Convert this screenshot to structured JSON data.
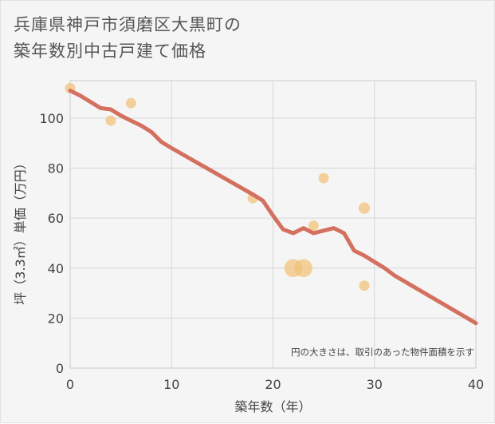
{
  "title_lines": [
    "兵庫県神戸市須磨区大黒町の",
    "築年数別中古戸建て価格"
  ],
  "chart_data": {
    "type": "scatter",
    "xlabel": "築年数（年）",
    "ylabel": "坪（3.3㎡）単価（万円）",
    "xlim": [
      0,
      40
    ],
    "ylim": [
      0,
      115
    ],
    "xticks": [
      0,
      10,
      20,
      30,
      40
    ],
    "yticks": [
      0,
      20,
      40,
      60,
      80,
      100
    ],
    "grid": true,
    "annotation": "円の大きさは、取引のあった物件面積を示す",
    "points": [
      {
        "x": 0,
        "y": 112,
        "size": 1
      },
      {
        "x": 4,
        "y": 99,
        "size": 1
      },
      {
        "x": 6,
        "y": 106,
        "size": 1
      },
      {
        "x": 18,
        "y": 68,
        "size": 1
      },
      {
        "x": 22,
        "y": 40,
        "size": 3
      },
      {
        "x": 23,
        "y": 40,
        "size": 3
      },
      {
        "x": 24,
        "y": 57,
        "size": 1
      },
      {
        "x": 25,
        "y": 76,
        "size": 1
      },
      {
        "x": 29,
        "y": 64,
        "size": 1.2
      },
      {
        "x": 29,
        "y": 33,
        "size": 1
      }
    ],
    "trend": [
      {
        "x": 0,
        "y": 111
      },
      {
        "x": 1,
        "y": 109
      },
      {
        "x": 2,
        "y": 106.5
      },
      {
        "x": 3,
        "y": 104
      },
      {
        "x": 4,
        "y": 103.5
      },
      {
        "x": 5,
        "y": 101
      },
      {
        "x": 6,
        "y": 99
      },
      {
        "x": 7,
        "y": 97
      },
      {
        "x": 8,
        "y": 94.5
      },
      {
        "x": 9,
        "y": 90.5
      },
      {
        "x": 10,
        "y": 88
      },
      {
        "x": 18,
        "y": 69.5
      },
      {
        "x": 19,
        "y": 67
      },
      {
        "x": 20,
        "y": 61
      },
      {
        "x": 21,
        "y": 55.5
      },
      {
        "x": 22,
        "y": 54
      },
      {
        "x": 23,
        "y": 56
      },
      {
        "x": 24,
        "y": 54
      },
      {
        "x": 25,
        "y": 55
      },
      {
        "x": 26,
        "y": 56
      },
      {
        "x": 27,
        "y": 54
      },
      {
        "x": 28,
        "y": 47
      },
      {
        "x": 29,
        "y": 45
      },
      {
        "x": 30,
        "y": 42.5
      },
      {
        "x": 31,
        "y": 40
      },
      {
        "x": 32,
        "y": 37
      },
      {
        "x": 40,
        "y": 18
      }
    ],
    "point_color": "#f2c27a",
    "trend_color": "#d4705f"
  }
}
